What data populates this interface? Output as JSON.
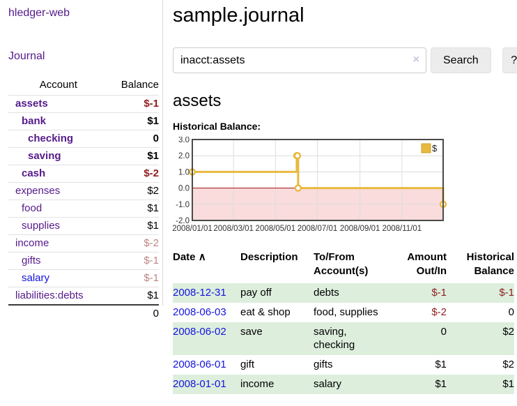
{
  "app": {
    "brand": "hledger-web"
  },
  "nav": {
    "journal": "Journal"
  },
  "sidebar": {
    "headers": {
      "account": "Account",
      "balance": "Balance"
    },
    "accounts": [
      {
        "name": "assets",
        "indent": 0,
        "bold": true,
        "balance": "$-1",
        "balance_class": "neg-strong"
      },
      {
        "name": "bank",
        "indent": 1,
        "bold": true,
        "balance": "$1",
        "balance_class": ""
      },
      {
        "name": "checking",
        "indent": 2,
        "bold": true,
        "balance": "0",
        "balance_class": ""
      },
      {
        "name": "saving",
        "indent": 2,
        "bold": true,
        "balance": "$1",
        "balance_class": ""
      },
      {
        "name": "cash",
        "indent": 1,
        "bold": true,
        "balance": "$-2",
        "balance_class": "neg-strong"
      },
      {
        "name": "expenses",
        "indent": 0,
        "bold": false,
        "balance": "$2",
        "balance_class": ""
      },
      {
        "name": "food",
        "indent": 1,
        "bold": false,
        "balance": "$1",
        "balance_class": ""
      },
      {
        "name": "supplies",
        "indent": 1,
        "bold": false,
        "balance": "$1",
        "balance_class": ""
      },
      {
        "name": "income",
        "indent": 0,
        "bold": false,
        "balance": "$-2",
        "balance_class": "neg-soft"
      },
      {
        "name": "gifts",
        "indent": 1,
        "bold": false,
        "balance": "$-1",
        "balance_class": "neg-soft"
      },
      {
        "name": "salary",
        "indent": 1,
        "bold": false,
        "balance": "$-1",
        "balance_class": "neg-soft",
        "blue": true
      },
      {
        "name": "liabilities:debts",
        "indent": 0,
        "bold": false,
        "balance": "$1",
        "balance_class": ""
      }
    ],
    "total": "0"
  },
  "header": {
    "title": "sample.journal"
  },
  "search": {
    "value": "inacct:assets",
    "clear_label": "×",
    "button_label": "Search",
    "help_label": "?"
  },
  "account_page": {
    "title": "assets",
    "chart_label": "Historical Balance:"
  },
  "chart_data": {
    "type": "line",
    "style": "step-after",
    "legend": "$",
    "x_range": [
      "2008-01-01",
      "2008-12-31"
    ],
    "y_range": [
      -2,
      3
    ],
    "x_ticks": [
      "2008/01/01",
      "2008/03/01",
      "2008/05/01",
      "2008/07/01",
      "2008/09/01",
      "2008/11/01"
    ],
    "y_ticks": [
      3.0,
      2.0,
      1.0,
      0.0,
      -1.0,
      -2.0
    ],
    "points": [
      {
        "date": "2008-01-01",
        "value": 1
      },
      {
        "date": "2008-06-01",
        "value": 2
      },
      {
        "date": "2008-06-02",
        "value": 2
      },
      {
        "date": "2008-06-03",
        "value": 0
      },
      {
        "date": "2008-12-31",
        "value": -1
      }
    ],
    "shade_below_zero": true,
    "grid": true,
    "legend_position": "top-right"
  },
  "register": {
    "columns": {
      "date": "Date",
      "description": "Description",
      "accounts": "To/From Account(s)",
      "amount": "Amount Out/In",
      "balance": "Historical Balance"
    },
    "sort_indicator": "∧",
    "rows": [
      {
        "date": "2008-12-31",
        "description": "pay off",
        "accounts": "debts",
        "amount": "$-1",
        "amount_neg": true,
        "balance": "$-1",
        "balance_neg": true
      },
      {
        "date": "2008-06-03",
        "description": "eat & shop",
        "accounts": "food, supplies",
        "amount": "$-2",
        "amount_neg": true,
        "balance": "0",
        "balance_neg": false
      },
      {
        "date": "2008-06-02",
        "description": "save",
        "accounts": "saving, checking",
        "amount": "0",
        "amount_neg": false,
        "balance": "$2",
        "balance_neg": false
      },
      {
        "date": "2008-06-01",
        "description": "gift",
        "accounts": "gifts",
        "amount": "$1",
        "amount_neg": false,
        "balance": "$2",
        "balance_neg": false
      },
      {
        "date": "2008-01-01",
        "description": "income",
        "accounts": "salary",
        "amount": "$1",
        "amount_neg": false,
        "balance": "$1",
        "balance_neg": false
      }
    ]
  },
  "colors": {
    "link_purple": "#551a8b",
    "link_blue": "#1414dd",
    "negative_strong": "#8f1d1d",
    "negative_soft": "#bf8484",
    "row_stripe_green": "#ddeedd",
    "chart_line_gold": "#e8b93f",
    "chart_marker_fill": "#ffffff",
    "chart_negative_fill": "#fadcdc",
    "chart_zero_line": "#a01010",
    "chart_border": "#4a4a4a",
    "chart_grid": "#dcdcdc",
    "button_bg": "#ececec"
  }
}
